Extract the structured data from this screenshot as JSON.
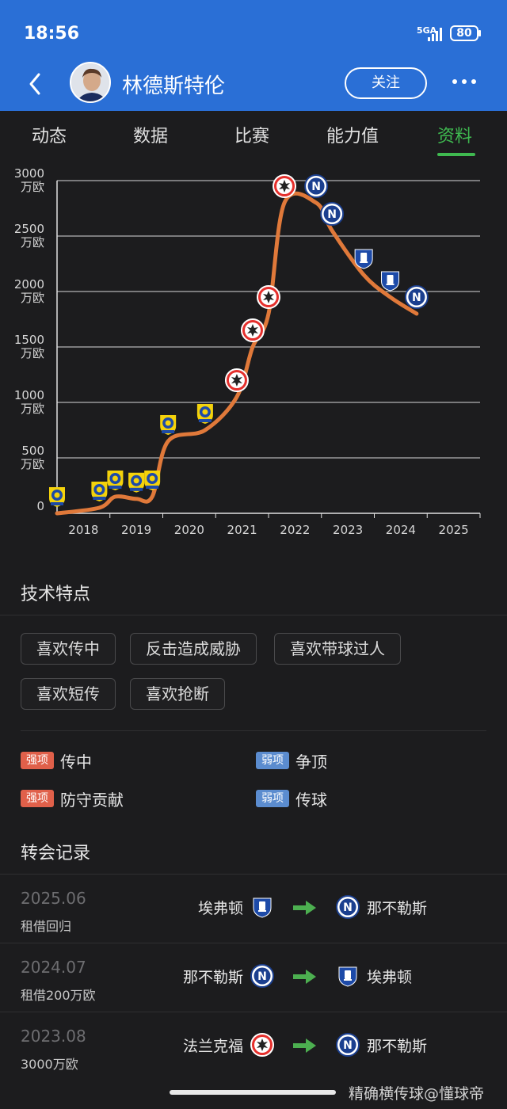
{
  "status_bar": {
    "time": "18:56",
    "network": "5GA",
    "battery": "80"
  },
  "header": {
    "title": "林德斯特伦",
    "follow_label": "关注"
  },
  "tabs": [
    {
      "label": "动态"
    },
    {
      "label": "数据"
    },
    {
      "label": "比赛"
    },
    {
      "label": "能力值"
    },
    {
      "label": "资料",
      "active": true
    }
  ],
  "chart_data": {
    "type": "line",
    "y_ticks": [
      {
        "value": "3000",
        "unit": "万欧"
      },
      {
        "value": "2500",
        "unit": "万欧"
      },
      {
        "value": "2000",
        "unit": "万欧"
      },
      {
        "value": "1500",
        "unit": "万欧"
      },
      {
        "value": "1000",
        "unit": "万欧"
      },
      {
        "value": "500",
        "unit": "万欧"
      },
      {
        "value": "0",
        "unit": ""
      }
    ],
    "x_ticks": [
      "2018",
      "2019",
      "2020",
      "2021",
      "2022",
      "2023",
      "2024",
      "2025"
    ],
    "ylim": [
      0,
      3000
    ],
    "xlim": [
      2017.5,
      2025.5
    ],
    "line_color": "#e0793a",
    "points": [
      {
        "x": 2017.5,
        "y": 0,
        "club": "brondby"
      },
      {
        "x": 2018.3,
        "y": 50,
        "club": "brondby"
      },
      {
        "x": 2018.6,
        "y": 150,
        "club": "brondby"
      },
      {
        "x": 2019.0,
        "y": 130,
        "club": "brondby"
      },
      {
        "x": 2019.3,
        "y": 150,
        "club": "brondby"
      },
      {
        "x": 2019.6,
        "y": 650,
        "club": "brondby"
      },
      {
        "x": 2020.3,
        "y": 750,
        "club": "brondby"
      },
      {
        "x": 2020.9,
        "y": 1050,
        "club": "frankfurt"
      },
      {
        "x": 2021.2,
        "y": 1500,
        "club": "frankfurt"
      },
      {
        "x": 2021.5,
        "y": 1800,
        "club": "frankfurt"
      },
      {
        "x": 2021.8,
        "y": 2800,
        "club": "frankfurt"
      },
      {
        "x": 2022.4,
        "y": 2800,
        "club": "napoli"
      },
      {
        "x": 2022.7,
        "y": 2550,
        "club": "napoli"
      },
      {
        "x": 2023.3,
        "y": 2150,
        "club": "everton"
      },
      {
        "x": 2023.8,
        "y": 1950,
        "club": "everton"
      },
      {
        "x": 2024.3,
        "y": 1800,
        "club": "napoli"
      }
    ]
  },
  "tech_section": {
    "title": "技术特点",
    "chips": [
      "喜欢传中",
      "反击造成威胁",
      "喜欢带球过人",
      "喜欢短传",
      "喜欢抢断"
    ],
    "strengths": [
      {
        "badge": "强项",
        "text": "传中"
      },
      {
        "badge": "强项",
        "text": "防守贡献"
      }
    ],
    "weaknesses": [
      {
        "badge": "弱项",
        "text": "争顶"
      },
      {
        "badge": "弱项",
        "text": "传球"
      }
    ]
  },
  "transfer_section": {
    "title": "转会记录",
    "rows": [
      {
        "date": "2025.06",
        "fee": "租借回归",
        "from": "埃弗顿",
        "from_club": "everton",
        "to": "那不勒斯",
        "to_club": "napoli"
      },
      {
        "date": "2024.07",
        "fee": "租借200万欧",
        "from": "那不勒斯",
        "from_club": "napoli",
        "to": "埃弗顿",
        "to_club": "everton"
      },
      {
        "date": "2023.08",
        "fee": "3000万欧",
        "from": "法兰克福",
        "from_club": "frankfurt",
        "to": "那不勒斯",
        "to_club": "napoli"
      }
    ]
  },
  "watermark": "精确横传球@懂球帝",
  "colors": {
    "header_bg": "#2a6fd6",
    "accent": "#3fb950",
    "strong": "#e0604a",
    "weak": "#5b8ccf",
    "arrow": "#4caf50"
  }
}
